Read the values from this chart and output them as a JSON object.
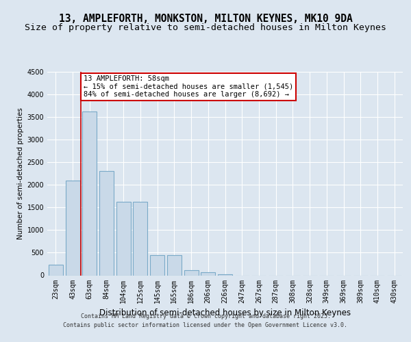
{
  "title": "13, AMPLEFORTH, MONKSTON, MILTON KEYNES, MK10 9DA",
  "subtitle": "Size of property relative to semi-detached houses in Milton Keynes",
  "xlabel": "Distribution of semi-detached houses by size in Milton Keynes",
  "ylabel": "Number of semi-detached properties",
  "categories": [
    "23sqm",
    "43sqm",
    "63sqm",
    "84sqm",
    "104sqm",
    "125sqm",
    "145sqm",
    "165sqm",
    "186sqm",
    "206sqm",
    "226sqm",
    "247sqm",
    "267sqm",
    "287sqm",
    "308sqm",
    "328sqm",
    "349sqm",
    "369sqm",
    "389sqm",
    "410sqm",
    "430sqm"
  ],
  "values": [
    230,
    2100,
    3620,
    2300,
    1620,
    1620,
    450,
    450,
    110,
    65,
    30,
    0,
    0,
    0,
    0,
    0,
    0,
    0,
    0,
    0,
    0
  ],
  "bar_color": "#c9d9e8",
  "bar_edge_color": "#7aaac8",
  "vline_color": "#cc0000",
  "vline_pos": 1.5,
  "annotation_text": "13 AMPLEFORTH: 58sqm\n← 15% of semi-detached houses are smaller (1,545)\n84% of semi-detached houses are larger (8,692) →",
  "annotation_box_color": "#ffffff",
  "annotation_box_edge": "#cc0000",
  "ylim": [
    0,
    4500
  ],
  "yticks": [
    0,
    500,
    1000,
    1500,
    2000,
    2500,
    3000,
    3500,
    4000,
    4500
  ],
  "background_color": "#dce6f0",
  "plot_background": "#dce6f0",
  "footer_line1": "Contains HM Land Registry data © Crown copyright and database right 2025.",
  "footer_line2": "Contains public sector information licensed under the Open Government Licence v3.0.",
  "title_fontsize": 10.5,
  "subtitle_fontsize": 9.5,
  "xlabel_fontsize": 8.5,
  "ylabel_fontsize": 7.5,
  "tick_fontsize": 7,
  "annotation_fontsize": 7.5,
  "footer_fontsize": 6
}
